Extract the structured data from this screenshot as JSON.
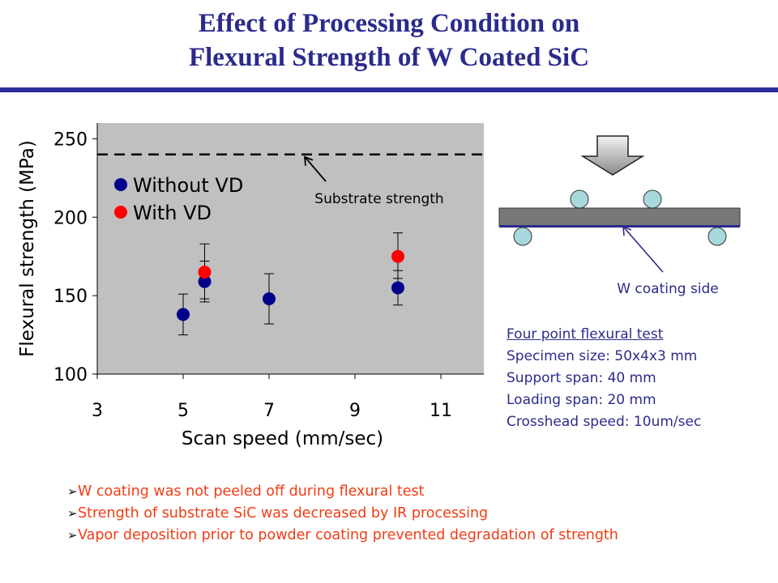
{
  "title": {
    "line1": "Effect of Processing Condition on",
    "line2": "Flexural Strength of W Coated SiC"
  },
  "colors": {
    "title": "#2b2b8c",
    "rule": "#2d2d9a",
    "plot_bg": "#c0c0c0",
    "without_vd": "#00008b",
    "with_vd": "#ff0000",
    "bullet_text": "#f03c14",
    "info_text": "#2b2b8c"
  },
  "chart_data": {
    "type": "scatter",
    "xlabel": "Scan speed (mm/sec)",
    "ylabel": "Flexural strength (MPa)",
    "xlim": [
      3,
      12
    ],
    "ylim": [
      100,
      260
    ],
    "xticks": [
      "3",
      "5",
      "7",
      "9",
      "11"
    ],
    "yticks": [
      "100",
      "150",
      "200",
      "250"
    ],
    "grid": false,
    "legend_position": "top-left",
    "series": [
      {
        "name": "Without VD",
        "color": "#00008b",
        "points": [
          {
            "x": 5.0,
            "y": 138,
            "err_low": 125,
            "err_high": 151
          },
          {
            "x": 5.5,
            "y": 159,
            "err_low": 146,
            "err_high": 172
          },
          {
            "x": 7.0,
            "y": 148,
            "err_low": 132,
            "err_high": 164
          },
          {
            "x": 10.0,
            "y": 155,
            "err_low": 144,
            "err_high": 166
          }
        ]
      },
      {
        "name": "With VD",
        "color": "#ff0000",
        "points": [
          {
            "x": 5.5,
            "y": 165,
            "err_low": 148,
            "err_high": 183
          },
          {
            "x": 10.0,
            "y": 175,
            "err_low": 161,
            "err_high": 190
          }
        ]
      }
    ],
    "reference_line": {
      "y": 240,
      "label": "Substrate strength",
      "style": "dashed"
    }
  },
  "diagram": {
    "label": "W coating side"
  },
  "test_info": {
    "heading": "Four point flexural test",
    "lines": [
      "Specimen size: 50x4x3 mm",
      "Support span: 40 mm",
      "Loading span: 20 mm",
      "Crosshead speed: 10um/sec"
    ]
  },
  "bullets": [
    "W coating was not peeled off during flexural test",
    "Strength of substrate SiC was decreased by IR processing",
    "Vapor deposition prior to powder coating prevented degradation of strength"
  ],
  "bullet_marker": "➢"
}
